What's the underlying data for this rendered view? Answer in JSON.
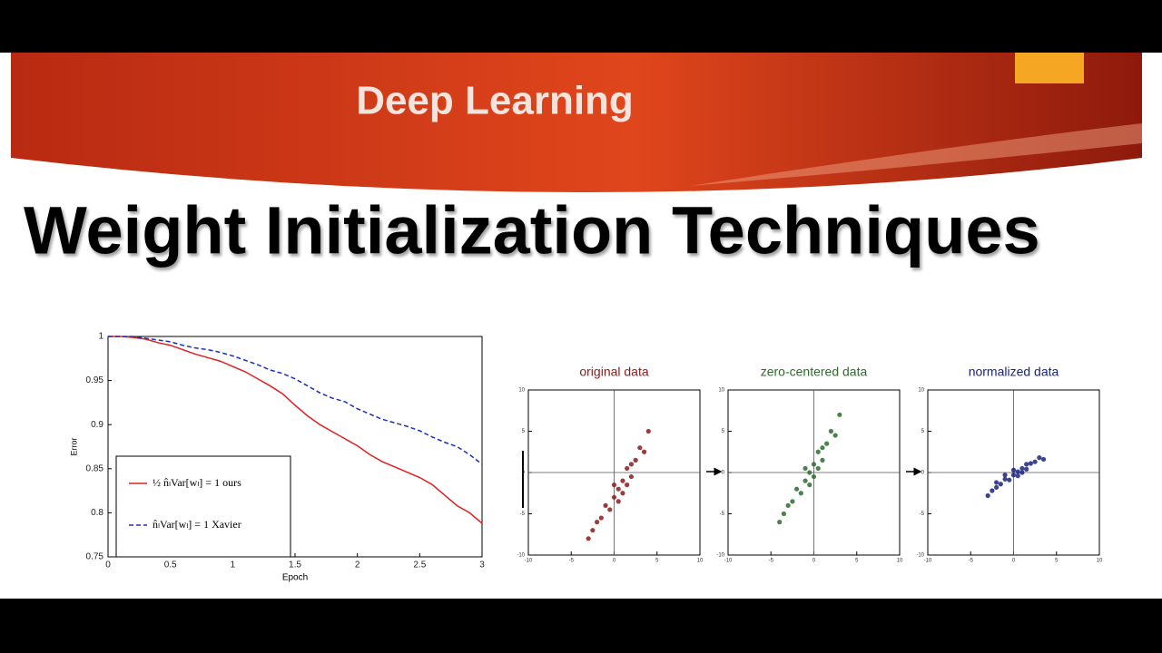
{
  "header": {
    "title": "Deep Learning"
  },
  "title": "Weight Initialization Techniques",
  "chart_data": [
    {
      "type": "line",
      "x_label": "Epoch",
      "y_label": "Error",
      "x": [
        0,
        0.1,
        0.2,
        0.3,
        0.4,
        0.5,
        0.6,
        0.7,
        0.8,
        0.9,
        1,
        1.1,
        1.2,
        1.3,
        1.4,
        1.5,
        1.6,
        1.7,
        1.8,
        1.9,
        2,
        2.1,
        2.2,
        2.3,
        2.4,
        2.5,
        2.6,
        2.7,
        2.8,
        2.9,
        3
      ],
      "series": [
        {
          "name": "½ n̂ₗVar[wₗ] = 1  ours",
          "color": "#e02020",
          "linestyle": "solid",
          "values": [
            1,
            1,
            0.999,
            0.997,
            0.993,
            0.99,
            0.985,
            0.98,
            0.976,
            0.972,
            0.966,
            0.96,
            0.952,
            0.944,
            0.935,
            0.922,
            0.91,
            0.9,
            0.892,
            0.884,
            0.876,
            0.866,
            0.858,
            0.852,
            0.846,
            0.84,
            0.832,
            0.82,
            0.808,
            0.8,
            0.788
          ]
        },
        {
          "name": "n̂ₗVar[wₗ] = 1  Xavier",
          "color": "#1a2fc0",
          "linestyle": "dashed",
          "values": [
            1,
            1,
            1,
            0.998,
            0.996,
            0.994,
            0.99,
            0.987,
            0.985,
            0.982,
            0.978,
            0.973,
            0.968,
            0.962,
            0.958,
            0.952,
            0.944,
            0.936,
            0.93,
            0.926,
            0.918,
            0.912,
            0.906,
            0.902,
            0.898,
            0.893,
            0.886,
            0.88,
            0.875,
            0.866,
            0.855
          ]
        }
      ],
      "xlim": [
        0,
        3
      ],
      "xticks": [
        0,
        0.5,
        1,
        1.5,
        2,
        2.5,
        3
      ],
      "ylim": [
        0.75,
        1
      ],
      "yticks": [
        0.75,
        0.8,
        0.85,
        0.9,
        0.95,
        1
      ],
      "legend": "lower left"
    },
    {
      "type": "scatter",
      "title": "original data",
      "color": "#8b1a1a",
      "x": [
        -3,
        -2.5,
        -2,
        -1.5,
        -1,
        -0.5,
        0,
        0.5,
        0.5,
        1,
        1.5,
        1.5,
        2,
        2.5,
        3,
        3.5,
        4,
        1,
        0,
        2
      ],
      "values": [
        -8,
        -7,
        -6,
        -5.5,
        -4,
        -4.5,
        -3,
        -2,
        -3.5,
        -1,
        -1.5,
        0.5,
        1,
        1.5,
        3,
        2.5,
        5,
        -2.5,
        -1.5,
        -0.5
      ],
      "xlim": [
        -10,
        10
      ],
      "xticks": [
        -10,
        -5,
        0,
        5,
        10
      ],
      "ylim": [
        -10,
        10
      ],
      "yticks": [
        -10,
        -5,
        0,
        5,
        10
      ]
    },
    {
      "type": "scatter",
      "title": "zero-centered data",
      "color": "#2e6b2e",
      "x": [
        -4,
        -3.5,
        -3,
        -2.5,
        -2,
        -1.5,
        -1,
        -0.5,
        -0.5,
        0,
        0.5,
        0.5,
        1,
        1.5,
        2,
        2.5,
        3,
        0,
        -1,
        1
      ],
      "values": [
        -6,
        -5,
        -4,
        -3.5,
        -2,
        -2.5,
        -1,
        0,
        -1.5,
        1,
        0.5,
        2.5,
        3,
        3.5,
        5,
        4.5,
        7,
        -0.5,
        0.5,
        1.5
      ],
      "xlim": [
        -10,
        10
      ],
      "xticks": [
        -10,
        -5,
        0,
        5,
        10
      ],
      "ylim": [
        -10,
        10
      ],
      "yticks": [
        -10,
        -5,
        0,
        5,
        10
      ]
    },
    {
      "type": "scatter",
      "title": "normalized data",
      "color": "#1a237e",
      "x": [
        -3,
        -2.5,
        -2,
        -1.5,
        -1,
        -0.5,
        0,
        0.5,
        0.5,
        1,
        1.5,
        1.5,
        2,
        2.5,
        3,
        -1,
        0,
        1,
        -2,
        3.5
      ],
      "values": [
        -2.8,
        -2.2,
        -1.8,
        -1.4,
        -0.8,
        -0.9,
        -0.3,
        0.1,
        -0.4,
        0.5,
        0.4,
        1,
        1.1,
        1.3,
        1.8,
        -0.3,
        0.3,
        0,
        -1.2,
        1.6
      ],
      "xlim": [
        -10,
        10
      ],
      "xticks": [
        -10,
        -5,
        0,
        5,
        10
      ],
      "ylim": [
        -10,
        10
      ],
      "yticks": [
        -10,
        -5,
        0,
        5,
        10
      ]
    }
  ]
}
